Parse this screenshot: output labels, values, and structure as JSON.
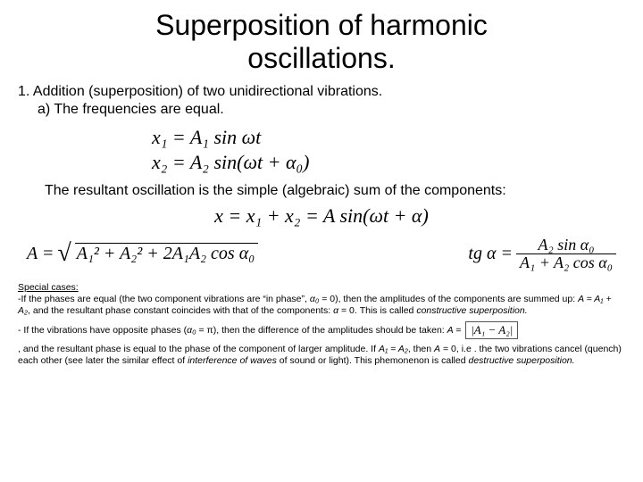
{
  "title_l1": "Superposition of harmonic",
  "title_l2": "oscillations.",
  "section1": "1. Addition (superposition) of two unidirectional vibrations.",
  "section1a": "a) The frequencies are equal.",
  "eq_x1": "x₁ = A₁ sin ωt",
  "eq_x2": "x₂ = A₂ sin(ωt + α₀)",
  "resultant_text": "The resultant oscillation is the simple (algebraic) sum of the components:",
  "eq_sum": "x = x₁ + x₂ = A sin(ωt + α)",
  "eq_A_lhs": "A =",
  "eq_A_body": "A₁² + A₂² + 2A₁A₂ cos α₀",
  "eq_tan_lhs": "tg α =",
  "eq_tan_num": "A₂ sin α₀",
  "eq_tan_den": "A₁ + A₂ cos α₀",
  "special_heading": "Special cases:",
  "case1_a": "-If the phases are equal (the two component vibrations are “in phase”, ",
  "case1_alpha0": "α₀",
  "case1_b": " = 0), then the amplitudes of the components are summed up: ",
  "case1_eqA": "A = A₁ + A₂",
  "case1_c": ", and the resultant phase constant coincides with that of the components: ",
  "case1_alpha": "α",
  "case1_d": " = 0. This is called ",
  "case1_constr": "constructive superposition.",
  "case2_a": "- If the vibrations have opposite phases (",
  "case2_alpha0": "α₀",
  "case2_b": " = π), then the difference of the amplitudes should be taken: ",
  "case2_Aeq": "A =",
  "abs_expr": "|A₁ − A₂|",
  "case3_a": ", and the resultant phase is equal to the phase of the component of larger amplitude. If ",
  "case3_eqA": "A₁ = A₂",
  "case3_b": ", then ",
  "case3_A0": "A",
  "case3_c": " = 0, i.e . the two vibrations cancel (quench) each other (see later the similar effect of ",
  "case3_interf": "interference of waves",
  "case3_d": " of sound or light). This phemonenon is called ",
  "case3_destr": "destructive superposition.",
  "colors": {
    "text": "#000000",
    "background": "#ffffff"
  },
  "fonts": {
    "title_size": 32,
    "body_size": 16,
    "eq_size": 22,
    "small_size": 10.5
  }
}
